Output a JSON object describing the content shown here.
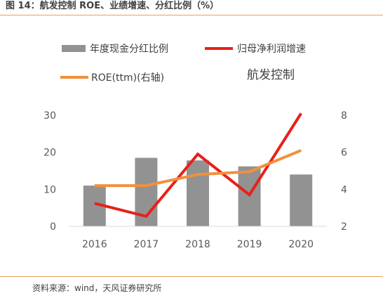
{
  "figure_title": "图 14：航发控制 ROE、业绩增速、分红比例（%）",
  "source": "资料来源：wind，天风证券研究所",
  "chart_data": {
    "type": "bar",
    "title": "航发控制",
    "categories": [
      "2016",
      "2017",
      "2018",
      "2019",
      "2020"
    ],
    "series": [
      {
        "name": "年度现金分红比例",
        "type": "bar",
        "axis": "left",
        "color": "#929292",
        "values": [
          11,
          18.5,
          17.8,
          16.2,
          14
        ]
      },
      {
        "name": "归母净利润增速",
        "type": "line",
        "axis": "left",
        "color": "#e8201a",
        "values": [
          6.2,
          2.7,
          19.5,
          8.5,
          30.5
        ]
      },
      {
        "name": "ROE(ttm)(右轴)",
        "type": "line",
        "axis": "right",
        "color": "#f0913c",
        "values": [
          4.2,
          4.2,
          4.8,
          4.95,
          6.1
        ]
      }
    ],
    "y_left": {
      "ticks": [
        "0",
        "10",
        "20",
        "30"
      ],
      "range": [
        0,
        30
      ]
    },
    "y_right": {
      "ticks": [
        "2",
        "4",
        "6",
        "8"
      ],
      "range": [
        2,
        8
      ]
    },
    "grid": false,
    "legend": "top"
  }
}
